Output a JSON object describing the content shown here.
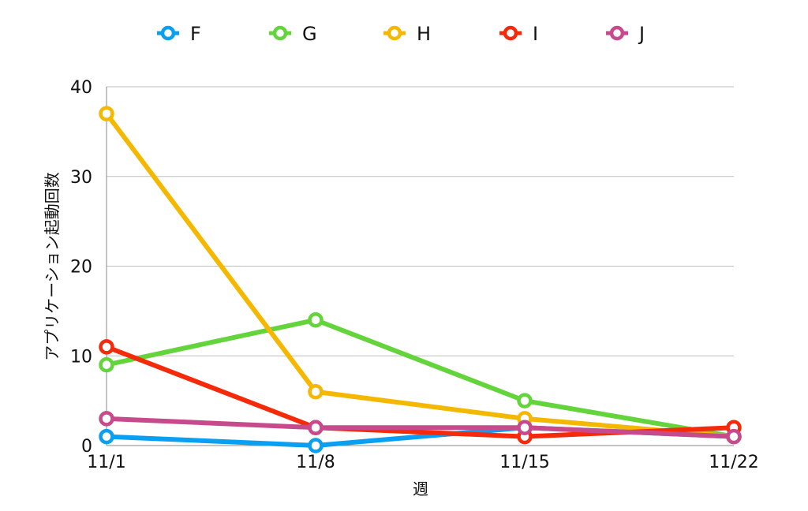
{
  "chart_data": {
    "type": "line",
    "title": "",
    "xlabel": "週",
    "ylabel": "アプリケーション起動回数",
    "categories": [
      "11/1",
      "11/8",
      "11/15",
      "11/22"
    ],
    "ylim": [
      0,
      40
    ],
    "yticks": [
      0,
      10,
      20,
      30,
      40
    ],
    "grid": true,
    "legend_position": "top",
    "series": [
      {
        "name": "F",
        "color": "#0a9ff0",
        "values": [
          1,
          0,
          2,
          1
        ]
      },
      {
        "name": "G",
        "color": "#63d43b",
        "values": [
          9,
          14,
          5,
          1
        ]
      },
      {
        "name": "H",
        "color": "#f5b800",
        "values": [
          37,
          6,
          3,
          1
        ]
      },
      {
        "name": "I",
        "color": "#f52a0a",
        "values": [
          11,
          2,
          1,
          2
        ]
      },
      {
        "name": "J",
        "color": "#c74a8c",
        "values": [
          3,
          2,
          2,
          1
        ]
      }
    ]
  }
}
